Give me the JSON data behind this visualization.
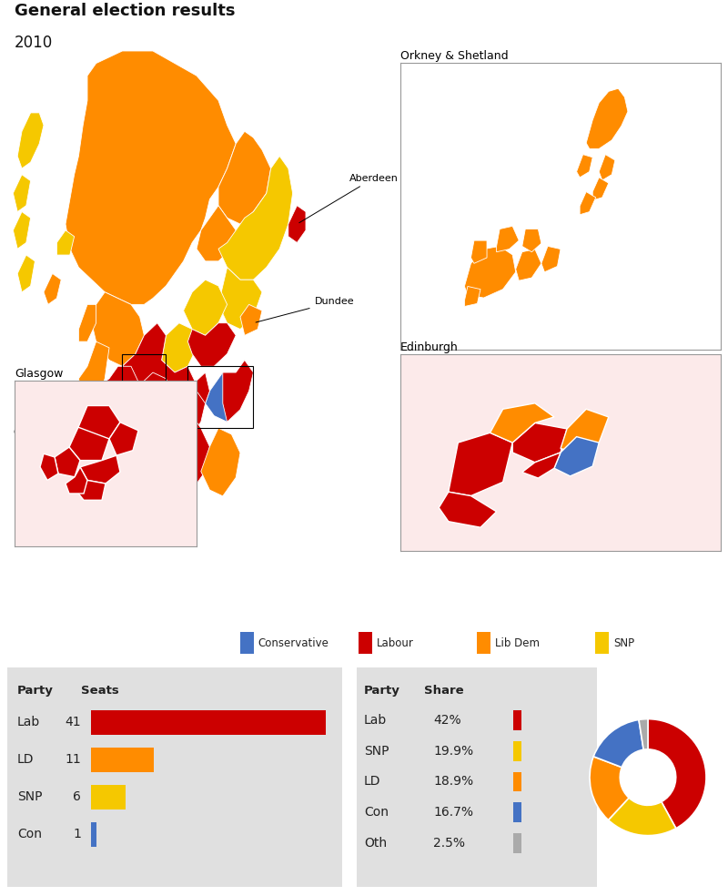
{
  "title": "General election results",
  "year": "2010",
  "parties": [
    "Lab",
    "LD",
    "SNP",
    "Con"
  ],
  "seats": [
    41,
    11,
    6,
    1
  ],
  "seats_max": 41,
  "share_parties": [
    "Lab",
    "SNP",
    "LD",
    "Con",
    "Oth"
  ],
  "share_values": [
    42.0,
    19.9,
    18.9,
    16.7,
    2.5
  ],
  "share_labels": [
    "42%",
    "19.9%",
    "18.9%",
    "16.7%",
    "2.5%"
  ],
  "party_colors": {
    "Lab": "#cc0000",
    "LD": "#ff8c00",
    "SNP": "#f5c800",
    "Con": "#4472c4",
    "Oth": "#aaaaaa"
  },
  "legend_items": [
    "Conservative",
    "Labour",
    "Lib Dem",
    "SNP"
  ],
  "legend_colors": [
    "#4472c4",
    "#cc0000",
    "#ff8c00",
    "#f5c800"
  ],
  "bg_color": "#ffffff",
  "table_bg": "#e0e0e0",
  "inset_bg": "#fce8e8"
}
